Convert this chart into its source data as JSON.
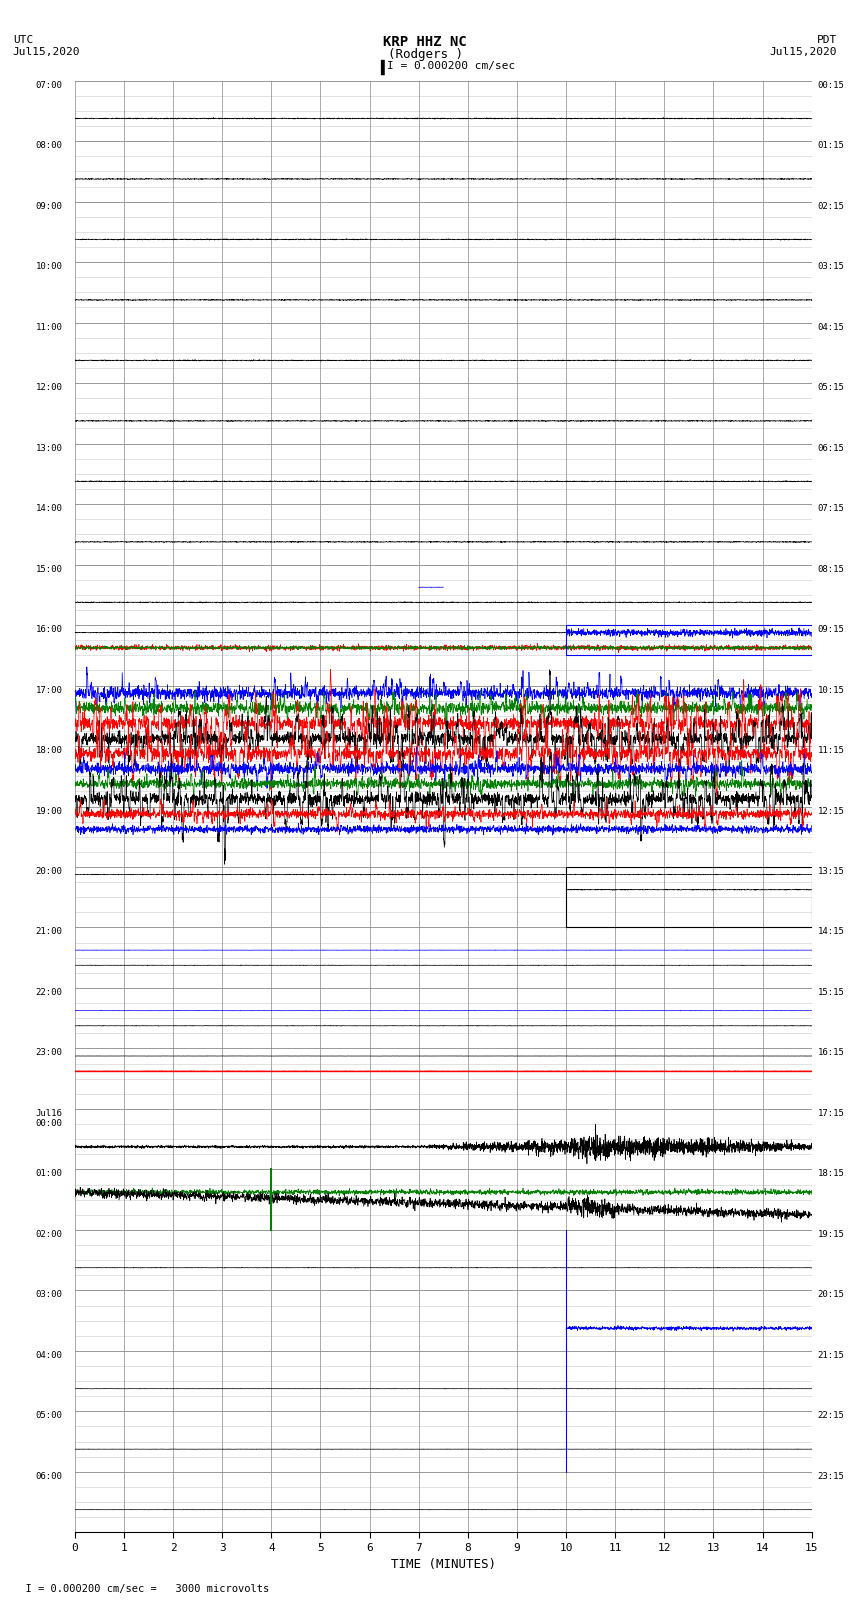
{
  "title_line1": "KRP HHZ NC",
  "title_line2": "(Rodgers )",
  "scale_label": "I = 0.000200 cm/sec",
  "left_label_top": "UTC",
  "left_label_date": "Jul15,2020",
  "right_label_top": "PDT",
  "right_label_date": "Jul15,2020",
  "bottom_label": "TIME (MINUTES)",
  "bottom_note": "  I = 0.000200 cm/sec =   3000 microvolts",
  "xlim": [
    0,
    15
  ],
  "xticks": [
    0,
    1,
    2,
    3,
    4,
    5,
    6,
    7,
    8,
    9,
    10,
    11,
    12,
    13,
    14,
    15
  ],
  "left_times": [
    "07:00",
    "08:00",
    "09:00",
    "10:00",
    "11:00",
    "12:00",
    "13:00",
    "14:00",
    "15:00",
    "16:00",
    "17:00",
    "18:00",
    "19:00",
    "20:00",
    "21:00",
    "22:00",
    "23:00",
    "Jul16\n00:00",
    "01:00",
    "02:00",
    "03:00",
    "04:00",
    "05:00",
    "06:00"
  ],
  "right_times": [
    "00:15",
    "01:15",
    "02:15",
    "03:15",
    "04:15",
    "05:15",
    "06:15",
    "07:15",
    "08:15",
    "09:15",
    "10:15",
    "11:15",
    "12:15",
    "13:15",
    "14:15",
    "15:15",
    "16:15",
    "17:15",
    "18:15",
    "19:15",
    "20:15",
    "21:15",
    "22:15",
    "23:15"
  ],
  "n_rows": 24,
  "n_subrows": 4,
  "bg_color": "white",
  "grid_major_color": "#888888",
  "grid_minor_color": "#cccccc",
  "blue": "#0000ff",
  "green": "#008000",
  "red": "#ff0000",
  "black": "#000000"
}
